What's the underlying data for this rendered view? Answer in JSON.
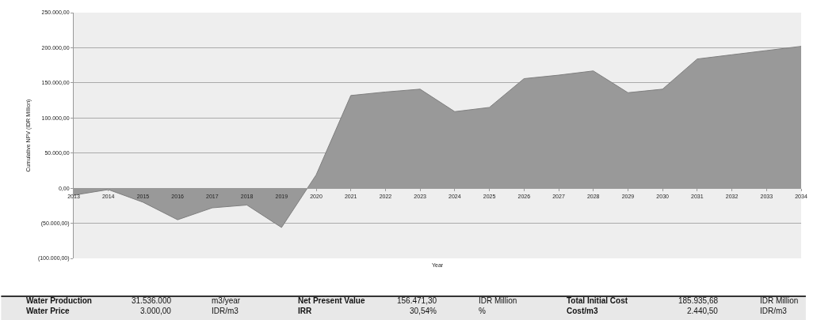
{
  "chart_data": {
    "type": "area",
    "xlabel": "Year",
    "ylabel": "Cumulative NPV (IDR Million)",
    "x": [
      2013,
      2014,
      2015,
      2016,
      2017,
      2018,
      2019,
      2020,
      2021,
      2022,
      2023,
      2024,
      2025,
      2026,
      2027,
      2028,
      2029,
      2030,
      2031,
      2032,
      2033,
      2034
    ],
    "series": [
      {
        "color": "#999999",
        "values": [
          -10000,
          -2000,
          -20000,
          -45000,
          -28000,
          -24000,
          -56000,
          19000,
          132000,
          137000,
          141000,
          109000,
          115000,
          156000,
          161000,
          167000,
          136000,
          141000,
          184000,
          190000,
          196000,
          202000
        ]
      }
    ],
    "xlim": [
      2013,
      2034
    ],
    "xticks": [
      2013,
      2014,
      2015,
      2016,
      2017,
      2018,
      2019,
      2020,
      2021,
      2022,
      2023,
      2024,
      2025,
      2026,
      2027,
      2028,
      2029,
      2030,
      2031,
      2032,
      2033,
      2034
    ],
    "ylim": [
      -100000,
      250000
    ],
    "yticks": [
      {
        "value": -100000,
        "label": "(100.000,00)"
      },
      {
        "value": -50000,
        "label": "(50.000,00)"
      },
      {
        "value": 0,
        "label": "0,00"
      },
      {
        "value": 50000,
        "label": "50.000,00"
      },
      {
        "value": 100000,
        "label": "100.000,00"
      },
      {
        "value": 150000,
        "label": "150.000,00"
      },
      {
        "value": 200000,
        "label": "200.000,00"
      },
      {
        "value": 250000,
        "label": "250.000,00"
      }
    ],
    "grid": "y",
    "annotations": [
      "Water Production",
      "31.536.000",
      "m3/year",
      "Net Present Value",
      "156.471,30",
      "IDR Million",
      "Total Initial Cost",
      "185.935,68",
      "IDR Million",
      "Water Price",
      "3.000,00",
      "IDR/m3",
      "IRR",
      "30,54%",
      "%",
      "Cost/m3",
      "2.440,50",
      "IDR/m3"
    ]
  }
}
